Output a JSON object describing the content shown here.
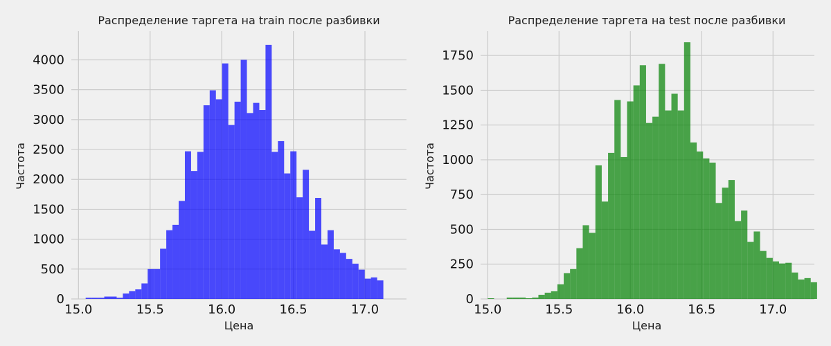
{
  "chart_data": [
    {
      "type": "bar",
      "title": "Распределение таргета на train после разбивки",
      "xlabel": "Цена",
      "ylabel": "Частота",
      "color": "#0000ff",
      "xlim": [
        14.95,
        17.29
      ],
      "ylim": [
        0,
        4480
      ],
      "xticks": [
        "15.0",
        "15.5",
        "16.0",
        "16.5",
        "17.0"
      ],
      "xtick_values": [
        15.0,
        15.5,
        16.0,
        16.5,
        17.0
      ],
      "yticks": [
        "0",
        "500",
        "1000",
        "1500",
        "2000",
        "2500",
        "3000",
        "3500",
        "4000"
      ],
      "ytick_values": [
        0,
        500,
        1000,
        1500,
        2000,
        2500,
        3000,
        3500,
        4000
      ],
      "grid": true,
      "bin_start": 15.05,
      "bin_width": 0.0433,
      "values": [
        20,
        20,
        20,
        40,
        40,
        20,
        90,
        130,
        160,
        260,
        500,
        500,
        840,
        1150,
        1240,
        1640,
        2470,
        2140,
        2460,
        3240,
        3490,
        3340,
        3940,
        2910,
        3300,
        4000,
        3110,
        3280,
        3160,
        4250,
        2460,
        2640,
        2100,
        2470,
        1700,
        2160,
        1140,
        1690,
        910,
        1150,
        830,
        770,
        670,
        590,
        490,
        340,
        360,
        310
      ]
    },
    {
      "type": "bar",
      "title": "Распределение таргета на test после разбивки",
      "xlabel": "Цена",
      "ylabel": "Частота",
      "color": "#008000",
      "xlim": [
        14.95,
        17.29
      ],
      "ylim": [
        0,
        1925
      ],
      "xticks": [
        "15.0",
        "15.5",
        "16.0",
        "16.5",
        "17.0"
      ],
      "xtick_values": [
        15.0,
        15.5,
        16.0,
        16.5,
        17.0
      ],
      "yticks": [
        "0",
        "250",
        "500",
        "750",
        "1000",
        "1250",
        "1500",
        "1750"
      ],
      "ytick_values": [
        0,
        250,
        500,
        750,
        1000,
        1250,
        1500,
        1750
      ],
      "grid": true,
      "bin_start": 15.0,
      "bin_width": 0.0444,
      "values": [
        5,
        0,
        0,
        10,
        10,
        10,
        5,
        10,
        30,
        45,
        55,
        105,
        185,
        215,
        365,
        530,
        475,
        960,
        700,
        1050,
        1430,
        1020,
        1420,
        1535,
        1680,
        1265,
        1310,
        1690,
        1355,
        1475,
        1355,
        1845,
        1125,
        1060,
        1010,
        980,
        690,
        800,
        855,
        560,
        635,
        410,
        485,
        345,
        295,
        270,
        255,
        260,
        190,
        140,
        150,
        120
      ]
    }
  ]
}
